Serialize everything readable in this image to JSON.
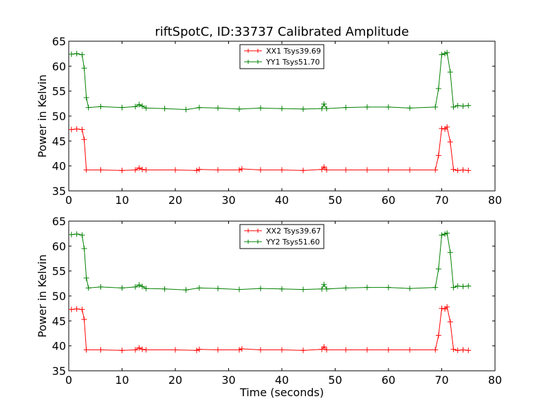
{
  "figure": {
    "title": "riftSpotC, ID:33737 Calibrated Amplitude",
    "xlabel": "Time (seconds)"
  },
  "colors": {
    "xx": "#ff0000",
    "yy": "#008000"
  },
  "chart_data": [
    {
      "type": "line",
      "ylabel": "Power in Kelvin",
      "xlim": [
        0,
        80
      ],
      "ylim": [
        35,
        65
      ],
      "xticks": [
        "0",
        "10",
        "20",
        "30",
        "40",
        "50",
        "60",
        "70",
        "80"
      ],
      "yticks": [
        "35",
        "40",
        "45",
        "50",
        "55",
        "60",
        "65"
      ],
      "grid": false,
      "legend": "top-center",
      "series": [
        {
          "name": "XX1 Tsys39.69",
          "color": "#ff0000",
          "marker": "+",
          "x": [
            0.5,
            1.5,
            2.5,
            2.9,
            3.3,
            6.0,
            10.0,
            12.5,
            13.2,
            13.8,
            14.5,
            20.0,
            24.0,
            24.5,
            28.0,
            32.0,
            32.5,
            36.0,
            40.0,
            44.0,
            47.5,
            47.9,
            48.4,
            52.0,
            56.0,
            60.0,
            64.0,
            68.8,
            69.4,
            70.0,
            70.6,
            71.0,
            71.6,
            72.2,
            73.0,
            74.0,
            75.0
          ],
          "y": [
            47.3,
            47.4,
            47.3,
            45.3,
            39.2,
            39.2,
            39.1,
            39.2,
            39.6,
            39.3,
            39.2,
            39.2,
            39.1,
            39.3,
            39.2,
            39.2,
            39.4,
            39.2,
            39.2,
            39.1,
            39.3,
            39.8,
            39.2,
            39.2,
            39.2,
            39.2,
            39.2,
            39.2,
            42.1,
            47.5,
            47.4,
            47.8,
            44.8,
            39.3,
            39.1,
            39.2,
            39.1
          ]
        },
        {
          "name": "YY1 Tsys51.70",
          "color": "#008000",
          "marker": "+",
          "x": [
            0.5,
            1.5,
            2.5,
            2.9,
            3.3,
            3.7,
            6.0,
            10.0,
            12.5,
            13.2,
            13.8,
            14.5,
            18.0,
            22.0,
            24.5,
            28.0,
            32.0,
            36.0,
            40.0,
            44.0,
            47.5,
            47.9,
            48.4,
            52.0,
            56.0,
            60.0,
            64.0,
            68.8,
            69.4,
            70.0,
            70.6,
            71.0,
            71.6,
            72.2,
            73.0,
            74.0,
            75.0
          ],
          "y": [
            62.4,
            62.5,
            62.3,
            59.6,
            53.7,
            51.7,
            51.9,
            51.7,
            51.9,
            52.3,
            52.0,
            51.6,
            51.5,
            51.3,
            51.7,
            51.6,
            51.4,
            51.6,
            51.5,
            51.4,
            51.5,
            52.4,
            51.5,
            51.7,
            51.8,
            51.8,
            51.6,
            51.8,
            55.5,
            62.3,
            62.5,
            62.7,
            58.8,
            51.8,
            52.1,
            52.0,
            52.1
          ]
        }
      ]
    },
    {
      "type": "line",
      "ylabel": "Power in Kelvin",
      "xlim": [
        0,
        80
      ],
      "ylim": [
        35,
        65
      ],
      "xticks": [
        "0",
        "10",
        "20",
        "30",
        "40",
        "50",
        "60",
        "70",
        "80"
      ],
      "yticks": [
        "35",
        "40",
        "45",
        "50",
        "55",
        "60",
        "65"
      ],
      "grid": false,
      "legend": "top-center",
      "series": [
        {
          "name": "XX2 Tsys39.67",
          "color": "#ff0000",
          "marker": "+",
          "x": [
            0.5,
            1.5,
            2.5,
            2.9,
            3.3,
            6.0,
            10.0,
            12.5,
            13.2,
            13.8,
            14.5,
            20.0,
            24.0,
            24.5,
            28.0,
            32.0,
            32.5,
            36.0,
            40.0,
            44.0,
            47.5,
            47.9,
            48.4,
            52.0,
            56.0,
            60.0,
            64.0,
            68.8,
            69.4,
            70.0,
            70.6,
            71.0,
            71.6,
            72.2,
            73.0,
            74.0,
            75.0
          ],
          "y": [
            47.3,
            47.4,
            47.3,
            45.3,
            39.2,
            39.2,
            39.1,
            39.2,
            39.6,
            39.3,
            39.2,
            39.2,
            39.1,
            39.3,
            39.2,
            39.2,
            39.4,
            39.2,
            39.2,
            39.1,
            39.3,
            39.8,
            39.2,
            39.2,
            39.2,
            39.2,
            39.2,
            39.2,
            42.1,
            47.5,
            47.4,
            47.8,
            44.8,
            39.3,
            39.1,
            39.2,
            39.1
          ]
        },
        {
          "name": "YY2 Tsys51.60",
          "color": "#008000",
          "marker": "+",
          "x": [
            0.5,
            1.5,
            2.5,
            2.9,
            3.3,
            3.7,
            6.0,
            10.0,
            12.5,
            13.2,
            13.8,
            14.5,
            18.0,
            22.0,
            24.5,
            28.0,
            32.0,
            36.0,
            40.0,
            44.0,
            47.5,
            47.9,
            48.4,
            52.0,
            56.0,
            60.0,
            64.0,
            68.8,
            69.4,
            70.0,
            70.6,
            71.0,
            71.6,
            72.2,
            73.0,
            74.0,
            75.0
          ],
          "y": [
            62.3,
            62.4,
            62.2,
            59.5,
            53.6,
            51.6,
            51.8,
            51.6,
            51.8,
            52.2,
            51.9,
            51.5,
            51.4,
            51.2,
            51.6,
            51.5,
            51.3,
            51.5,
            51.4,
            51.3,
            51.4,
            52.3,
            51.4,
            51.6,
            51.7,
            51.7,
            51.5,
            51.7,
            55.4,
            62.2,
            62.4,
            62.6,
            58.7,
            51.7,
            52.0,
            51.9,
            52.0
          ]
        }
      ]
    }
  ]
}
